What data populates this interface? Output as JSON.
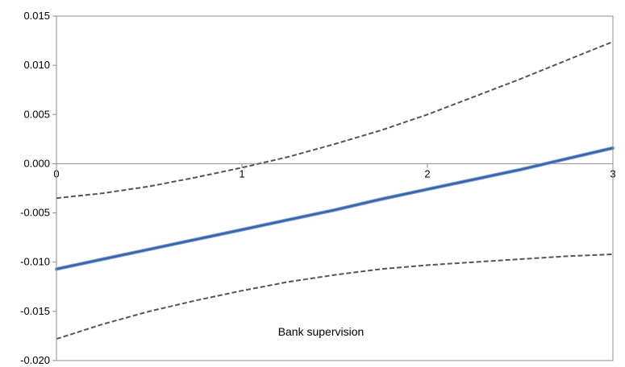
{
  "chart_data": {
    "type": "line",
    "title": "",
    "xlabel": "",
    "ylabel": "",
    "annotation": "Bank supervision",
    "xlim": [
      0,
      3
    ],
    "ylim": [
      -0.02,
      0.015
    ],
    "x_ticks": [
      "0",
      "1",
      "2",
      "3"
    ],
    "y_ticks": [
      "0.015",
      "0.010",
      "0.005",
      "0.000",
      "-0.005",
      "-0.010",
      "-0.015",
      "-0.020"
    ],
    "grid": false,
    "legend": "none",
    "x": [
      0,
      0.25,
      0.5,
      0.75,
      1,
      1.25,
      1.5,
      1.75,
      2,
      2.25,
      2.5,
      2.75,
      3
    ],
    "series": [
      {
        "style": "solid",
        "color": "#3b62a4",
        "values": [
          -0.0107,
          -0.0097,
          -0.0087,
          -0.0077,
          -0.0067,
          -0.0057,
          -0.0047,
          -0.0036,
          -0.0026,
          -0.0016,
          -0.0006,
          0.0005,
          0.0016
        ]
      },
      {
        "style": "dashed",
        "color": "#555555",
        "values": [
          -0.0035,
          -0.003,
          -0.0023,
          -0.0014,
          -0.0004,
          0.0007,
          0.002,
          0.0034,
          0.005,
          0.0068,
          0.0086,
          0.0105,
          0.0124
        ]
      },
      {
        "style": "dashed",
        "color": "#555555",
        "values": [
          -0.0178,
          -0.0163,
          -0.015,
          -0.0139,
          -0.0129,
          -0.012,
          -0.0113,
          -0.0107,
          -0.0103,
          -0.01,
          -0.0097,
          -0.0094,
          -0.0092
        ]
      }
    ]
  }
}
